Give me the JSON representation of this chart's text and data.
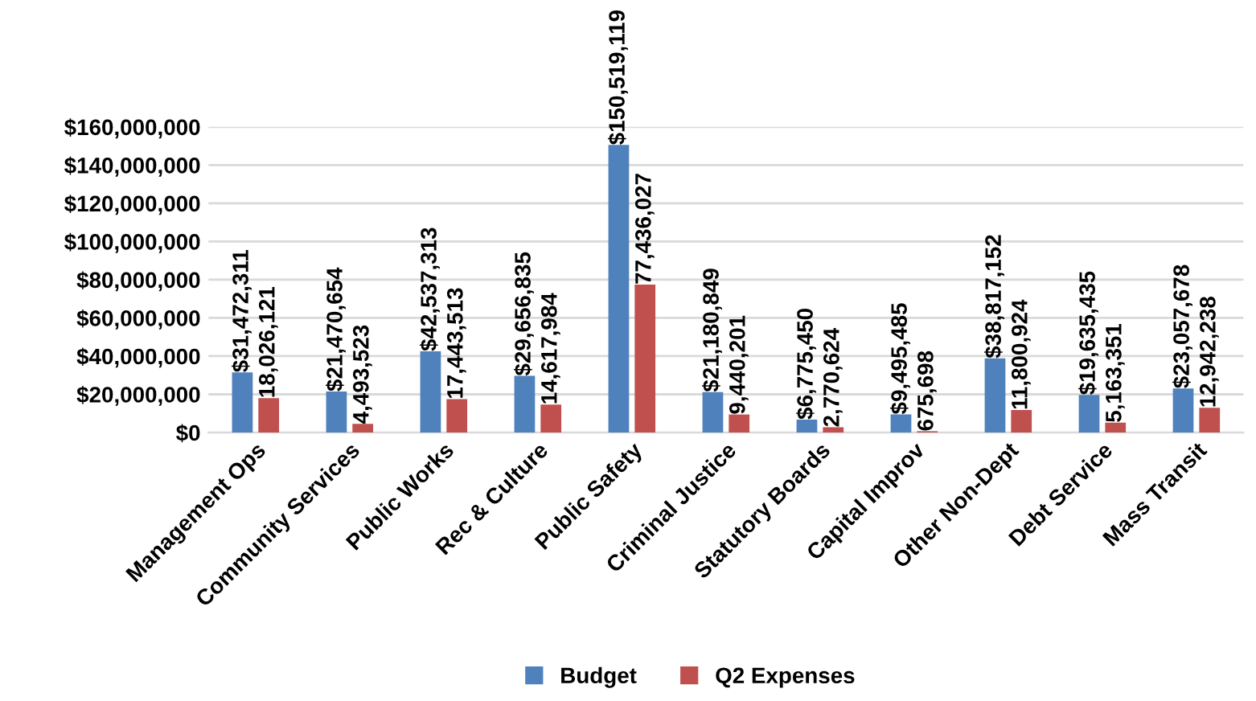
{
  "chart_data": {
    "type": "bar",
    "categories": [
      "Management Ops",
      "Community Services",
      "Public Works",
      "Rec & Culture",
      "Public Safety",
      "Criminal Justice",
      "Statutory Boards",
      "Capital Improv",
      "Other Non-Dept",
      "Debt Service",
      "Mass Transit"
    ],
    "series": [
      {
        "name": "Budget",
        "color": "#4f81bd",
        "values": [
          31472311,
          21470654,
          42537313,
          29656835,
          150519119,
          21180849,
          6775450,
          9495485,
          38817152,
          19635435,
          23057678
        ],
        "value_labels": [
          "$31,472,311",
          "$21,470,654",
          "$42,537,313",
          "$29,656,835",
          "$150,519,119",
          "$21,180,849",
          "$6,775,450",
          "$9,495,485",
          "$38,817,152",
          "$19,635,435",
          "$23,057,678"
        ]
      },
      {
        "name": "Q2 Expenses",
        "color": "#c0504d",
        "values": [
          18026121,
          4493523,
          17443513,
          14617984,
          77436027,
          9440201,
          2770624,
          675698,
          11800924,
          5163351,
          12942238
        ],
        "value_labels": [
          "18,026,121",
          "4,493,523",
          "17,443,513",
          "14,617,984",
          "77,436,027",
          "9,440,201",
          "2,770,624",
          "675,698",
          "11,800,924",
          "5,163,351",
          "12,942,238"
        ]
      }
    ],
    "ylim": [
      0,
      160000000
    ],
    "yticks": [
      {
        "value": 0,
        "label": "$0"
      },
      {
        "value": 20000000,
        "label": "$20,000,000"
      },
      {
        "value": 40000000,
        "label": "$40,000,000"
      },
      {
        "value": 60000000,
        "label": "$60,000,000"
      },
      {
        "value": 80000000,
        "label": "$80,000,000"
      },
      {
        "value": 100000000,
        "label": "$100,000,000"
      },
      {
        "value": 120000000,
        "label": "$120,000,000"
      },
      {
        "value": 140000000,
        "label": "$140,000,000"
      },
      {
        "value": 160000000,
        "label": "$160,000,000"
      }
    ],
    "grid": "y",
    "legend": "bottom"
  }
}
